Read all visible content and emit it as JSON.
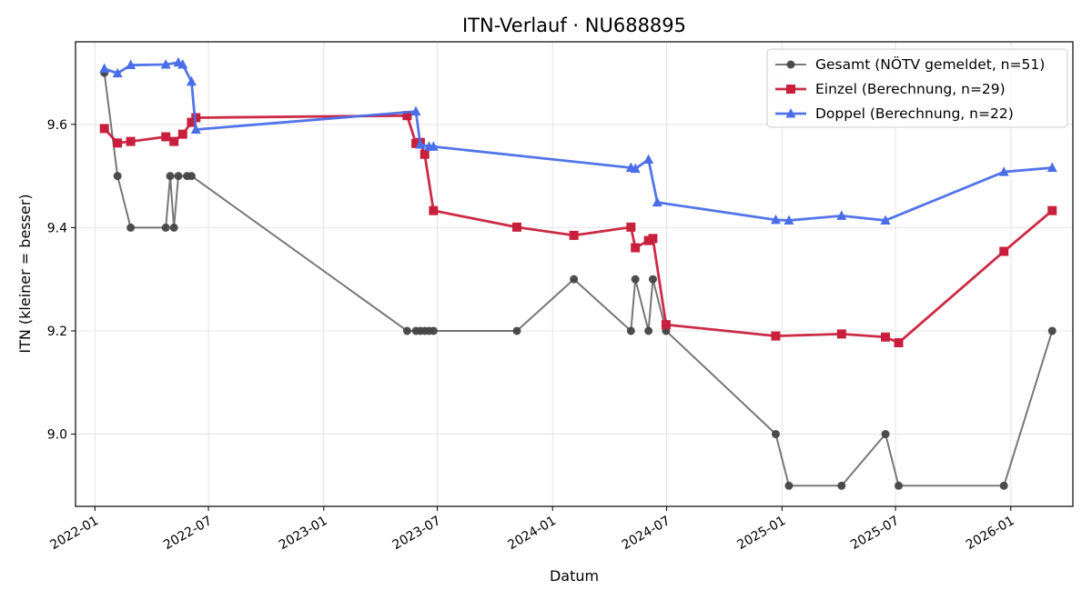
{
  "chart_data": {
    "type": "line",
    "title": "ITN-Verlauf · NU688895",
    "xlabel": "Datum",
    "ylabel": "ITN  (kleiner = besser)",
    "x_axis": {
      "type": "date",
      "range": [
        "2021-12-01",
        "2026-04-10"
      ],
      "ticks": [
        "2022-01-01",
        "2022-07-01",
        "2023-01-01",
        "2023-07-01",
        "2024-01-01",
        "2024-07-01",
        "2025-01-01",
        "2025-07-01",
        "2026-01-01"
      ],
      "tick_labels": [
        "2022-01",
        "2022-07",
        "2023-01",
        "2023-07",
        "2024-01",
        "2024-07",
        "2025-01",
        "2025-07",
        "2026-01"
      ]
    },
    "y_axis": {
      "range": [
        8.86,
        9.76
      ],
      "ticks": [
        9.0,
        9.2,
        9.4,
        9.6
      ],
      "tick_labels": [
        "9.0",
        "9.2",
        "9.4",
        "9.6"
      ]
    },
    "grid": true,
    "legend_position": "top-right",
    "series": [
      {
        "name": "Gesamt (NÖTV gemeldet, n=51)",
        "color": "#555555",
        "marker": "circle",
        "points": [
          [
            "2022-01-16",
            9.7
          ],
          [
            "2022-02-06",
            9.5
          ],
          [
            "2022-02-27",
            9.4
          ],
          [
            "2022-04-24",
            9.4
          ],
          [
            "2022-05-01",
            9.5
          ],
          [
            "2022-05-07",
            9.4
          ],
          [
            "2022-05-14",
            9.5
          ],
          [
            "2022-05-28",
            9.5
          ],
          [
            "2022-06-04",
            9.5
          ],
          [
            "2023-05-14",
            9.2
          ],
          [
            "2023-05-28",
            9.2
          ],
          [
            "2023-06-04",
            9.2
          ],
          [
            "2023-06-11",
            9.2
          ],
          [
            "2023-06-18",
            9.2
          ],
          [
            "2023-06-25",
            9.2
          ],
          [
            "2023-11-05",
            9.2
          ],
          [
            "2024-02-04",
            9.3
          ],
          [
            "2024-05-05",
            9.2
          ],
          [
            "2024-05-12",
            9.3
          ],
          [
            "2024-06-02",
            9.2
          ],
          [
            "2024-06-09",
            9.3
          ],
          [
            "2024-06-30",
            9.2
          ],
          [
            "2024-12-22",
            9.0
          ],
          [
            "2025-01-12",
            8.9
          ],
          [
            "2025-04-06",
            8.9
          ],
          [
            "2025-06-15",
            9.0
          ],
          [
            "2025-07-06",
            8.9
          ],
          [
            "2025-12-21",
            8.9
          ],
          [
            "2026-03-08",
            9.2
          ]
        ]
      },
      {
        "name": "Einzel (Berechnung, n=29)",
        "color": "#c8203c",
        "marker": "square",
        "points": [
          [
            "2022-01-16",
            9.592
          ],
          [
            "2022-02-06",
            9.564
          ],
          [
            "2022-02-27",
            9.567
          ],
          [
            "2022-04-24",
            9.576
          ],
          [
            "2022-05-07",
            9.567
          ],
          [
            "2022-05-21",
            9.581
          ],
          [
            "2022-06-04",
            9.604
          ],
          [
            "2022-06-11",
            9.613
          ],
          [
            "2023-05-14",
            9.617
          ],
          [
            "2023-05-28",
            9.563
          ],
          [
            "2023-06-04",
            9.565
          ],
          [
            "2023-06-11",
            9.542
          ],
          [
            "2023-06-25",
            9.433
          ],
          [
            "2023-11-05",
            9.401
          ],
          [
            "2024-02-04",
            9.385
          ],
          [
            "2024-05-05",
            9.401
          ],
          [
            "2024-05-12",
            9.361
          ],
          [
            "2024-06-02",
            9.375
          ],
          [
            "2024-06-09",
            9.379
          ],
          [
            "2024-06-30",
            9.212
          ],
          [
            "2024-12-22",
            9.19
          ],
          [
            "2025-04-06",
            9.194
          ],
          [
            "2025-06-15",
            9.188
          ],
          [
            "2025-07-06",
            9.177
          ],
          [
            "2025-12-21",
            9.354
          ],
          [
            "2026-03-08",
            9.433
          ]
        ]
      },
      {
        "name": "Doppel (Berechnung, n=22)",
        "color": "#4a6ee8",
        "marker": "triangle",
        "points": [
          [
            "2022-01-16",
            9.708
          ],
          [
            "2022-02-06",
            9.699
          ],
          [
            "2022-02-27",
            9.715
          ],
          [
            "2022-04-24",
            9.716
          ],
          [
            "2022-05-14",
            9.72
          ],
          [
            "2022-05-21",
            9.716
          ],
          [
            "2022-06-04",
            9.683
          ],
          [
            "2022-06-11",
            9.59
          ],
          [
            "2023-05-28",
            9.625
          ],
          [
            "2023-06-04",
            9.561
          ],
          [
            "2023-06-18",
            9.557
          ],
          [
            "2023-06-25",
            9.557
          ],
          [
            "2024-05-05",
            9.516
          ],
          [
            "2024-05-12",
            9.514
          ],
          [
            "2024-06-02",
            9.532
          ],
          [
            "2024-06-16",
            9.449
          ],
          [
            "2024-12-22",
            9.415
          ],
          [
            "2025-01-12",
            9.414
          ],
          [
            "2025-04-06",
            9.423
          ],
          [
            "2025-06-15",
            9.414
          ],
          [
            "2025-12-21",
            9.508
          ],
          [
            "2026-03-08",
            9.516
          ]
        ]
      }
    ]
  }
}
